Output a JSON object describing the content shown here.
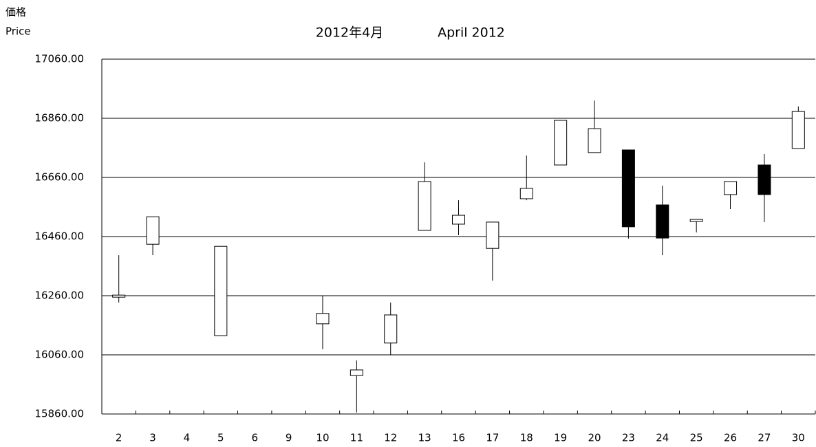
{
  "chart_data": {
    "type": "candlestick",
    "title": "2012年4月",
    "subtitle": "April 2012",
    "y_label": "価格",
    "y_label_en": "Price",
    "categories": [
      "2",
      "3",
      "4",
      "5",
      "6",
      "9",
      "10",
      "11",
      "12",
      "13",
      "16",
      "17",
      "18",
      "19",
      "20",
      "23",
      "24",
      "25",
      "26",
      "27",
      "30"
    ],
    "open": [
      16255,
      16434,
      null,
      16125,
      null,
      null,
      16165,
      15990,
      16100,
      16481,
      16502,
      16420,
      16588,
      16702,
      16744,
      16753,
      16567,
      16511,
      16602,
      16702,
      16758
    ],
    "high": [
      16397,
      16527,
      null,
      16427,
      null,
      null,
      16260,
      16041,
      16237,
      16711,
      16583,
      16509,
      16734,
      16853,
      16920,
      16753,
      16632,
      16518,
      16646,
      16739,
      16900
    ],
    "low": [
      16237,
      16397,
      null,
      16125,
      null,
      null,
      16079,
      15865,
      16060,
      16481,
      16465,
      16311,
      16583,
      16702,
      16744,
      16453,
      16397,
      16474,
      16553,
      16509,
      16758
    ],
    "close": [
      16262,
      16527,
      null,
      16427,
      null,
      null,
      16200,
      16009,
      16195,
      16646,
      16532,
      16509,
      16623,
      16853,
      16825,
      16493,
      16455,
      16518,
      16646,
      16602,
      16883
    ],
    "up_color": "#ffffff",
    "down_color": "#000000",
    "ylim": [
      15860,
      17060
    ],
    "yticks": [
      {
        "value": 15860,
        "label": "15860.00"
      },
      {
        "value": 16060,
        "label": "16060.00"
      },
      {
        "value": 16260,
        "label": "16260.00"
      },
      {
        "value": 16460,
        "label": "16460.00"
      },
      {
        "value": 16660,
        "label": "16660.00"
      },
      {
        "value": 16860,
        "label": "16860.00"
      },
      {
        "value": 17060,
        "label": "17060.00"
      }
    ],
    "grid": true
  }
}
